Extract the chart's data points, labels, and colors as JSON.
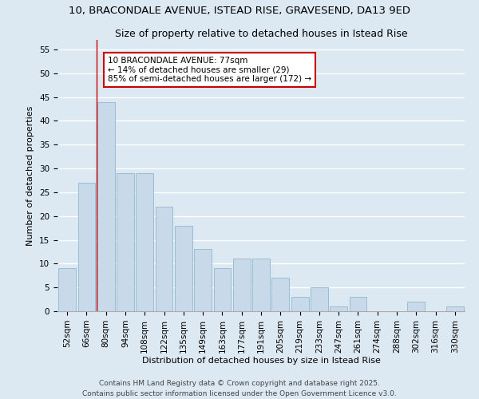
{
  "title": "10, BRACONDALE AVENUE, ISTEAD RISE, GRAVESEND, DA13 9ED",
  "subtitle": "Size of property relative to detached houses in Istead Rise",
  "xlabel": "Distribution of detached houses by size in Istead Rise",
  "ylabel": "Number of detached properties",
  "categories": [
    "52sqm",
    "66sqm",
    "80sqm",
    "94sqm",
    "108sqm",
    "122sqm",
    "135sqm",
    "149sqm",
    "163sqm",
    "177sqm",
    "191sqm",
    "205sqm",
    "219sqm",
    "233sqm",
    "247sqm",
    "261sqm",
    "274sqm",
    "288sqm",
    "302sqm",
    "316sqm",
    "330sqm"
  ],
  "values": [
    9,
    27,
    44,
    29,
    29,
    22,
    18,
    13,
    9,
    11,
    11,
    7,
    3,
    5,
    1,
    3,
    0,
    0,
    2,
    0,
    1
  ],
  "bar_color": "#c8d9ea",
  "bar_edge_color": "#9bbdd4",
  "background_color": "#dce8f2",
  "grid_color": "#ffffff",
  "vline_x_index": 2,
  "vline_color": "#cc0000",
  "annotation_text": "10 BRACONDALE AVENUE: 77sqm\n← 14% of detached houses are smaller (29)\n85% of semi-detached houses are larger (172) →",
  "annotation_box_facecolor": "#ffffff",
  "annotation_box_edgecolor": "#cc0000",
  "ylim": [
    0,
    57
  ],
  "yticks": [
    0,
    5,
    10,
    15,
    20,
    25,
    30,
    35,
    40,
    45,
    50,
    55
  ],
  "footnote": "Contains HM Land Registry data © Crown copyright and database right 2025.\nContains public sector information licensed under the Open Government Licence v3.0.",
  "title_fontsize": 9.5,
  "subtitle_fontsize": 9,
  "axis_label_fontsize": 8,
  "tick_fontsize": 7.5,
  "annotation_fontsize": 7.5,
  "footnote_fontsize": 6.5
}
